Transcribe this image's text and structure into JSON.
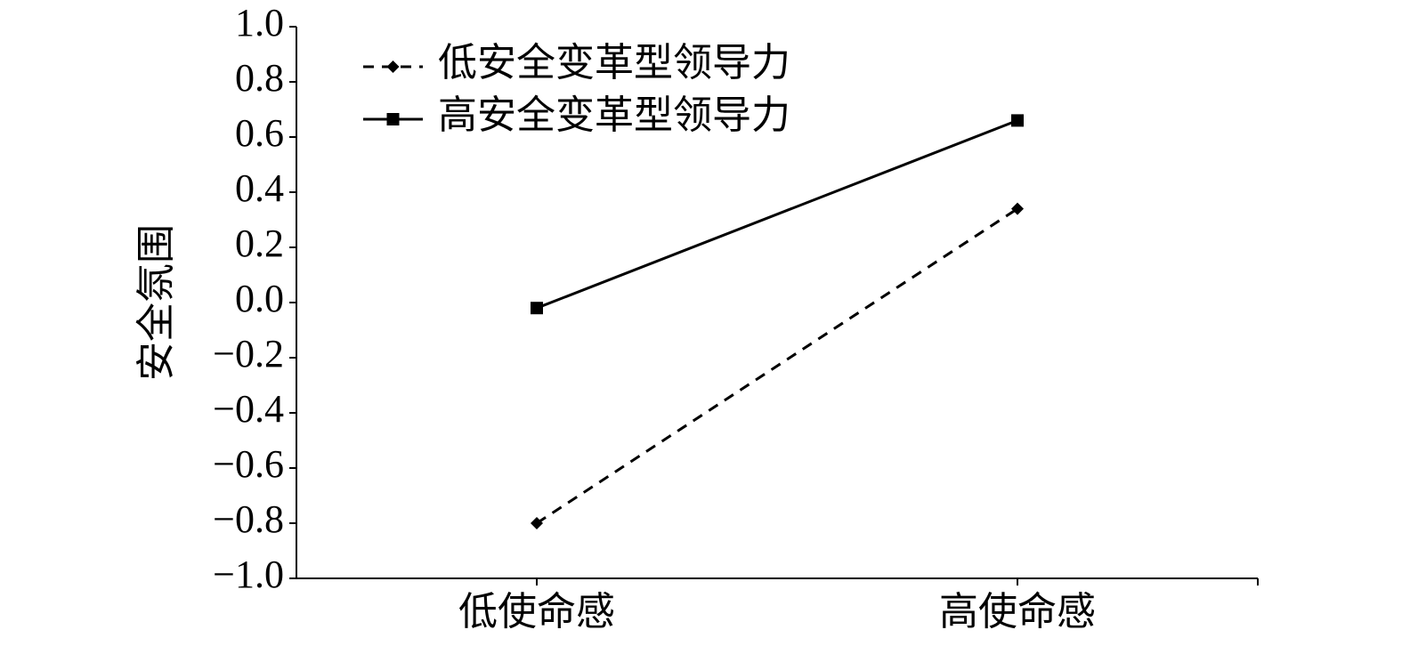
{
  "chart_data": {
    "type": "line",
    "y_label": "安全氛围",
    "categories": [
      "低使命感",
      "高使命感"
    ],
    "series": [
      {
        "name": "低安全变革型领导力",
        "color": "#000000",
        "line_style": "dashed",
        "marker": "diamond",
        "values": [
          -0.8,
          0.34
        ]
      },
      {
        "name": "高安全变革型领导力",
        "color": "#000000",
        "line_style": "solid",
        "marker": "square",
        "values": [
          -0.02,
          0.66
        ]
      }
    ],
    "ylim": [
      -1,
      1
    ],
    "yticks": [
      {
        "value": -1,
        "label": "−1.0"
      },
      {
        "value": -0.8,
        "label": "−0.8"
      },
      {
        "value": -0.6,
        "label": "−0.6"
      },
      {
        "value": -0.4,
        "label": "−0.4"
      },
      {
        "value": -0.2,
        "label": "−0.2"
      },
      {
        "value": 0,
        "label": "0.0"
      },
      0.2,
      0.4,
      0.6,
      0.8,
      {
        "value": 1,
        "label": "1.0"
      }
    ],
    "legend": "upper left"
  }
}
